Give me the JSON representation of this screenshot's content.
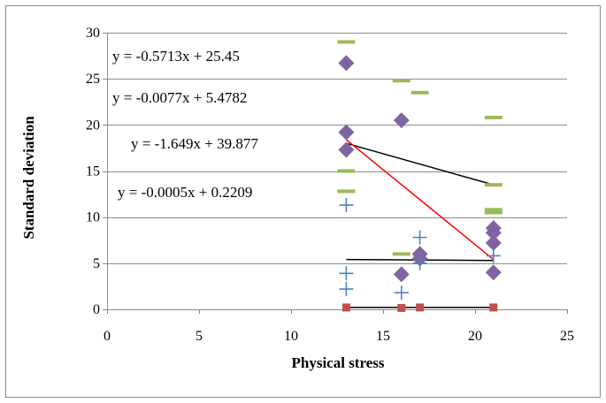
{
  "chart_data": {
    "type": "scatter",
    "title": "",
    "xlabel": "Physical stress",
    "ylabel": "Standard deviation",
    "xlim": [
      0,
      25
    ],
    "ylim": [
      0,
      30
    ],
    "xticks": [
      0,
      5,
      10,
      15,
      20,
      25
    ],
    "yticks": [
      0,
      5,
      10,
      15,
      20,
      25,
      30
    ],
    "grid": "horizontal",
    "legend": "none",
    "series": [
      {
        "marker": "dash",
        "color": "#9bbb59",
        "points": [
          [
            13,
            29
          ],
          [
            13,
            15
          ],
          [
            13,
            12.8
          ],
          [
            16,
            24.8
          ],
          [
            17,
            23.5
          ],
          [
            16,
            6.0
          ],
          [
            21,
            20.8
          ],
          [
            21,
            13.5
          ],
          [
            21,
            10.8
          ],
          [
            21,
            10.5
          ]
        ]
      },
      {
        "marker": "diamond",
        "color": "#8064a2",
        "points": [
          [
            13,
            26.7
          ],
          [
            13,
            19.2
          ],
          [
            13,
            17.3
          ],
          [
            16,
            20.5
          ],
          [
            16,
            3.8
          ],
          [
            17,
            6.0
          ],
          [
            17,
            5.5
          ],
          [
            21,
            8.8
          ],
          [
            21,
            8.3
          ],
          [
            21,
            7.2
          ],
          [
            21,
            4.0
          ]
        ]
      },
      {
        "marker": "plus",
        "color": "#4f81bd",
        "points": [
          [
            13,
            11.3
          ],
          [
            13,
            3.9
          ],
          [
            13,
            2.2
          ],
          [
            16,
            1.8
          ],
          [
            17,
            7.8
          ],
          [
            17,
            5.0
          ],
          [
            21,
            5.8
          ]
        ]
      },
      {
        "marker": "square",
        "color": "#c0504d",
        "points": [
          [
            13,
            0.2
          ],
          [
            16,
            0.15
          ],
          [
            17,
            0.2
          ],
          [
            21,
            0.2
          ]
        ]
      }
    ],
    "trendlines": [
      {
        "equation": "y = -0.5713x + 25.45",
        "color": "#000000",
        "x": [
          13,
          21
        ],
        "y": [
          18.0,
          13.5
        ]
      },
      {
        "equation": "y = -0.0077x + 5.4782",
        "color": "#000000",
        "x": [
          13,
          21
        ],
        "y": [
          5.4,
          5.3
        ]
      },
      {
        "equation": "y = -1.649x + 39.877",
        "color": "#ff0000",
        "x": [
          13,
          21
        ],
        "y": [
          18.4,
          5.4
        ]
      },
      {
        "equation": "y = -0.0005x + 0.2209",
        "color": "#000000",
        "x": [
          13,
          21
        ],
        "y": [
          0.2,
          0.2
        ]
      }
    ]
  }
}
